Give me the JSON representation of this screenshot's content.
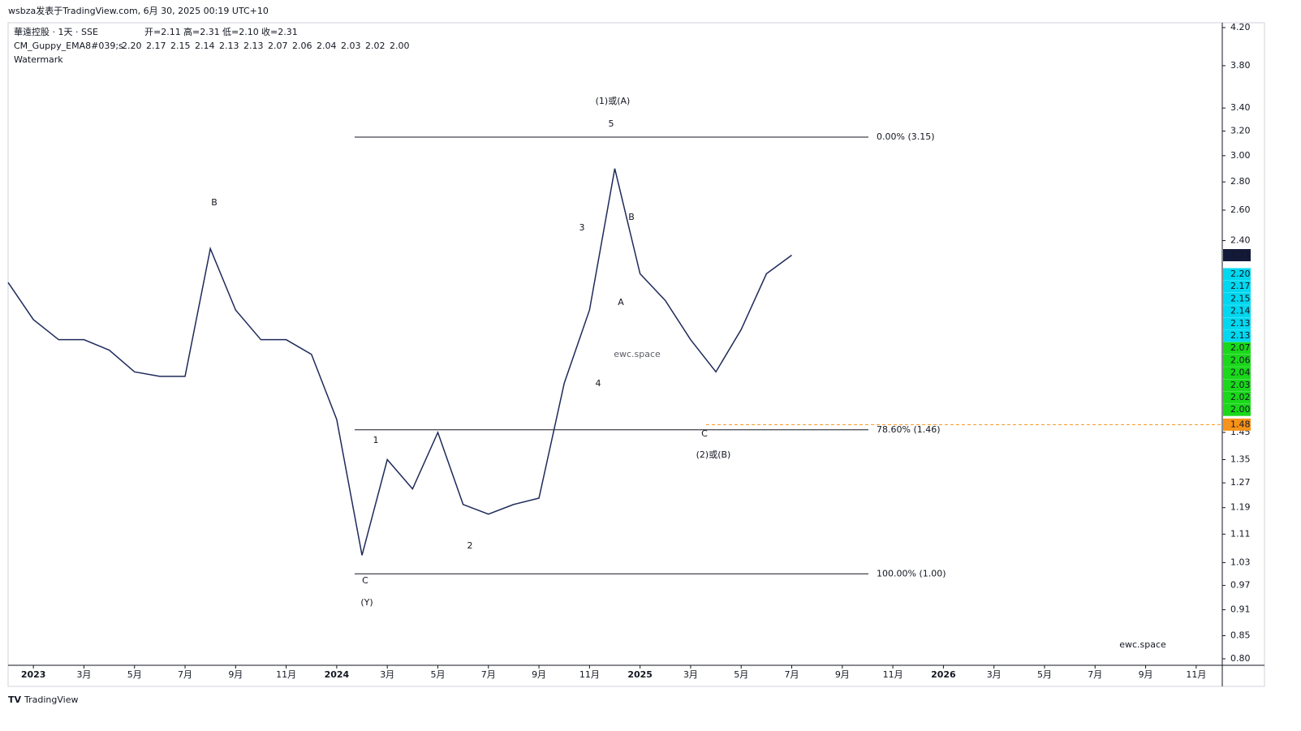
{
  "chart_data": {
    "type": "line",
    "title": "wsbza发表于TradingView.com, 6月 30, 2025 00:19 UTC+10",
    "symbol": "華遠控股 · 1天 · SSE",
    "ohlc": [
      "开=2.11",
      "高=2.31",
      "低=2.10",
      "收=2.31"
    ],
    "guppy": {
      "name": "CM_Guppy_EMA8#039;s",
      "values": [
        2.2,
        2.17,
        2.15,
        2.14,
        2.13,
        2.13,
        2.07,
        2.06,
        2.04,
        2.03,
        2.02,
        2.0
      ],
      "value_labels": [
        "2.20",
        "2.17",
        "2.15",
        "2.14",
        "2.13",
        "2.13",
        "2.07",
        "2.06",
        "2.04",
        "2.03",
        "2.02",
        "2.00"
      ],
      "colors": [
        "#00d8f0",
        "#00d8f0",
        "#00d8f0",
        "#00d8f0",
        "#00d8f0",
        "#00d8f0",
        "#1ad81a",
        "#1ad81a",
        "#1ad81a",
        "#1ad81a",
        "#1ad81a",
        "#1ad81a"
      ]
    },
    "indicator": "Watermark",
    "x": [
      "2022-12",
      "2023-01",
      "2023-02",
      "2023-03",
      "2023-04",
      "2023-05",
      "2023-06",
      "2023-07",
      "2023-08",
      "2023-09",
      "2023-10",
      "2023-11",
      "2023-12",
      "2024-01",
      "2024-02",
      "2024-03",
      "2024-04",
      "2024-05",
      "2024-06",
      "2024-07",
      "2024-08",
      "2024-09",
      "2024-10",
      "2024-11",
      "2024-12",
      "2025-01",
      "2025-02",
      "2025-03",
      "2025-04",
      "2025-05",
      "2025-06",
      "2025-07"
    ],
    "series": [
      {
        "color": "#1e2a5a",
        "values": [
          2.15,
          1.95,
          1.85,
          1.85,
          1.8,
          1.7,
          1.68,
          1.68,
          2.35,
          2.0,
          1.85,
          1.85,
          1.78,
          1.5,
          1.05,
          1.35,
          1.25,
          1.45,
          1.2,
          1.17,
          1.2,
          1.22,
          1.65,
          2.0,
          2.9,
          2.2,
          2.05,
          1.85,
          1.7,
          1.9,
          2.2,
          2.31
        ]
      }
    ],
    "last_price": {
      "value": 2.31,
      "label": "2.31"
    },
    "alert_line": {
      "value": 1.48,
      "label": "1.48",
      "color": "#f7931a"
    },
    "fib": [
      {
        "value": 3.15,
        "label": "0.00% (3.15)"
      },
      {
        "value": 1.46,
        "label": "78.60% (1.46)"
      },
      {
        "value": 1.0,
        "label": "100.00% (1.00)"
      }
    ],
    "annotations": [
      {
        "text": "(1)或(A)",
        "color": "#e020e0"
      },
      {
        "text": "5",
        "color": "#1a1aff"
      },
      {
        "text": "B",
        "color": "#1a1aff"
      },
      {
        "text": "3",
        "color": "#1a1aff"
      },
      {
        "text": "B",
        "color": "#1a1aff"
      },
      {
        "text": "A",
        "color": "#1a6a8a"
      },
      {
        "text": "4",
        "color": "#1a1aff"
      },
      {
        "text": "1",
        "color": "#1a1aff"
      },
      {
        "text": "2",
        "color": "#1a1aff"
      },
      {
        "text": "C",
        "color": "#1a1aff"
      },
      {
        "text": "(Y)",
        "color": "#e020e0"
      },
      {
        "text": "C",
        "color": "#1a1aff"
      },
      {
        "text": "(2)或(B)",
        "color": "#e020e0"
      }
    ],
    "watermark": "ewc.space",
    "brand": "TradingView",
    "log_scale": true,
    "ylim": [
      0.8,
      4.2
    ],
    "yticks": [
      {
        "value": 4.2,
        "label": "4.20"
      },
      {
        "value": 3.8,
        "label": "3.80"
      },
      {
        "value": 3.4,
        "label": "3.40"
      },
      {
        "value": 3.2,
        "label": "3.20"
      },
      {
        "value": 3.0,
        "label": "3.00"
      },
      {
        "value": 2.8,
        "label": "2.80"
      },
      {
        "value": 2.6,
        "label": "2.60"
      },
      {
        "value": 2.4,
        "label": "2.40"
      },
      {
        "value": 1.45,
        "label": "1.45"
      },
      {
        "value": 1.35,
        "label": "1.35"
      },
      {
        "value": 1.27,
        "label": "1.27"
      },
      {
        "value": 1.19,
        "label": "1.19"
      },
      {
        "value": 1.11,
        "label": "1.11"
      },
      {
        "value": 1.03,
        "label": "1.03"
      },
      {
        "value": 0.97,
        "label": "0.97"
      },
      {
        "value": 0.91,
        "label": "0.91"
      },
      {
        "value": 0.85,
        "label": "0.85"
      },
      {
        "value": 0.8,
        "label": "0.80"
      }
    ],
    "xlim": [
      "2022-12",
      "2026-12"
    ],
    "xticks": [
      {
        "value": "2023-01",
        "label": "2023"
      },
      {
        "value": "2023-03",
        "label": "3月"
      },
      {
        "value": "2023-05",
        "label": "5月"
      },
      {
        "value": "2023-07",
        "label": "7月"
      },
      {
        "value": "2023-09",
        "label": "9月"
      },
      {
        "value": "2023-11",
        "label": "11月"
      },
      {
        "value": "2024-01",
        "label": "2024"
      },
      {
        "value": "2024-03",
        "label": "3月"
      },
      {
        "value": "2024-05",
        "label": "5月"
      },
      {
        "value": "2024-07",
        "label": "7月"
      },
      {
        "value": "2024-09",
        "label": "9月"
      },
      {
        "value": "2024-11",
        "label": "11月"
      },
      {
        "value": "2025-01",
        "label": "2025"
      },
      {
        "value": "2025-03",
        "label": "3月"
      },
      {
        "value": "2025-05",
        "label": "5月"
      },
      {
        "value": "2025-07",
        "label": "7月"
      },
      {
        "value": "2025-09",
        "label": "9月"
      },
      {
        "value": "2025-11",
        "label": "11月"
      },
      {
        "value": "2026-01",
        "label": "2026"
      },
      {
        "value": "2026-03",
        "label": "3月"
      },
      {
        "value": "2026-05",
        "label": "5月"
      },
      {
        "value": "2026-07",
        "label": "7月"
      },
      {
        "value": "2026-09",
        "label": "9月"
      },
      {
        "value": "2026-11",
        "label": "11月"
      }
    ]
  }
}
